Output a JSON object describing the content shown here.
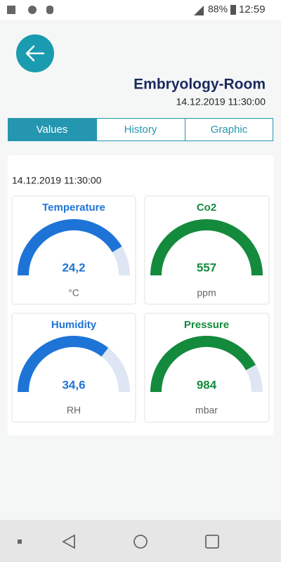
{
  "status_bar": {
    "battery": "88%",
    "time": "12:59"
  },
  "header": {
    "title": "Embryology-Room",
    "datetime": "14.12.2019 11:30:00"
  },
  "tabs": [
    "Values",
    "History",
    "Graphic"
  ],
  "panel": {
    "datetime": "14.12.2019 11:30:00",
    "gauges": [
      {
        "title": "Temperature",
        "value": "24,2",
        "unit": "°C"
      },
      {
        "title": "Co2",
        "value": "557",
        "unit": "ppm"
      },
      {
        "title": "Humidity",
        "value": "34,6",
        "unit": "RH"
      },
      {
        "title": "Pressure",
        "value": "984",
        "unit": "mbar"
      }
    ]
  }
}
